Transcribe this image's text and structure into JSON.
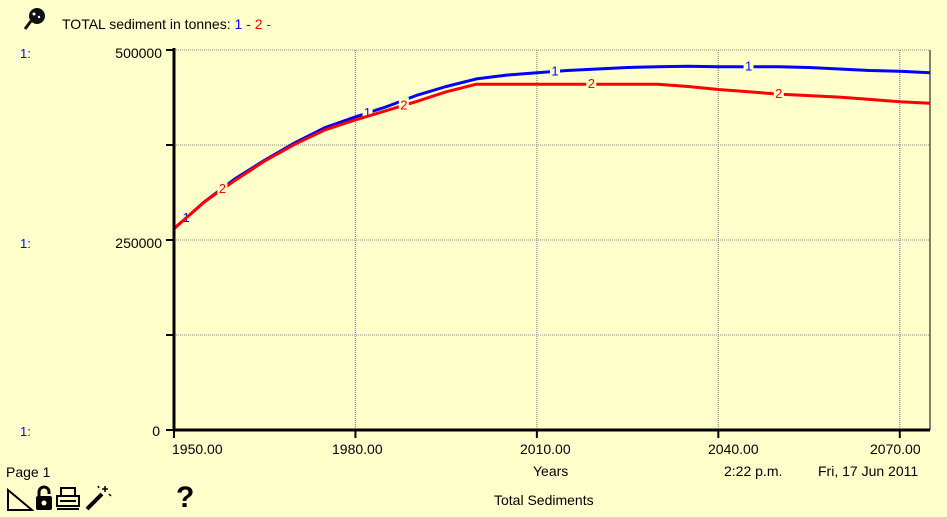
{
  "legend": {
    "title": "TOTAL sediment in tonnes:",
    "s1_label": "1",
    "s2_label": "2",
    "sep": " - "
  },
  "axis_prefix": "1:",
  "footer": {
    "page": "Page 1",
    "time": "2:22 p.m.",
    "date": "Fri, 17 Jun 2011",
    "title": "Total Sediments"
  },
  "icons": [
    "sheet-icon",
    "lock-icon",
    "print-icon",
    "wand-icon",
    "help-icon"
  ],
  "colors": {
    "background": "#ffffcc",
    "series1": "#0000ff",
    "series2": "#ff0000"
  },
  "chart_data": {
    "type": "line",
    "title": "TOTAL sediment in tonnes",
    "xlabel": "Years",
    "ylabel": "",
    "xlim": [
      1950,
      2075
    ],
    "ylim": [
      0,
      500000
    ],
    "x_ticks": [
      1950,
      1980,
      2010,
      2040,
      2070
    ],
    "x_tick_labels": [
      "1950.00",
      "1980.00",
      "2010.00",
      "2040.00",
      "2070.00"
    ],
    "y_ticks": [
      0,
      250000,
      500000
    ],
    "y_tick_labels": [
      "0",
      "250000",
      "500000"
    ],
    "grid": true,
    "series": [
      {
        "name": "1",
        "color": "#0000ff",
        "x": [
          1950,
          1955,
          1960,
          1965,
          1970,
          1975,
          1980,
          1985,
          1990,
          1995,
          2000,
          2005,
          2010,
          2015,
          2020,
          2025,
          2030,
          2035,
          2040,
          2045,
          2050,
          2055,
          2060,
          2065,
          2070,
          2075
        ],
        "y": [
          265000,
          300000,
          330000,
          355000,
          378000,
          398000,
          412000,
          425000,
          440000,
          452000,
          462000,
          467000,
          470000,
          473000,
          475000,
          477000,
          478000,
          478500,
          478000,
          478000,
          478000,
          477000,
          475000,
          473000,
          472000,
          470000
        ]
      },
      {
        "name": "2",
        "color": "#ff0000",
        "x": [
          1950,
          1955,
          1960,
          1965,
          1970,
          1975,
          1980,
          1985,
          1990,
          1995,
          2000,
          2005,
          2010,
          2015,
          2020,
          2025,
          2030,
          2035,
          2040,
          2045,
          2050,
          2055,
          2060,
          2065,
          2070,
          2075
        ],
        "y": [
          265000,
          300000,
          328000,
          354000,
          376000,
          395000,
          408000,
          420000,
          432000,
          445000,
          455000,
          455000,
          455000,
          455000,
          455000,
          455000,
          455000,
          452000,
          448000,
          445000,
          442000,
          440000,
          438000,
          435000,
          432000,
          430000
        ]
      }
    ]
  }
}
